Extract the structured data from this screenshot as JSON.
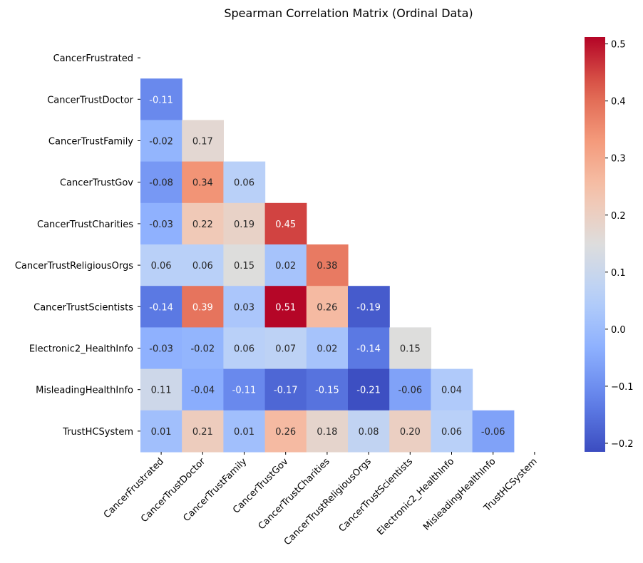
{
  "chart_data": {
    "type": "heatmap",
    "title": "Spearman Correlation Matrix (Ordinal Data)",
    "xlabel": "",
    "ylabel": "",
    "row_labels": [
      "CancerFrustrated",
      "CancerTrustDoctor",
      "CancerTrustFamily",
      "CancerTrustGov",
      "CancerTrustCharities",
      "CancerTrustReligiousOrgs",
      "CancerTrustScientists",
      "Electronic2_HealthInfo",
      "MisleadingHealthInfo",
      "TrustHCSystem"
    ],
    "col_labels": [
      "CancerFrustrated",
      "CancerTrustDoctor",
      "CancerTrustFamily",
      "CancerTrustGov",
      "CancerTrustCharities",
      "CancerTrustReligiousOrgs",
      "CancerTrustScientists",
      "Electronic2_HealthInfo",
      "MisleadingHealthInfo",
      "TrustHCSystem"
    ],
    "mask": "upper triangle including diagonal",
    "values": [
      [
        null,
        null,
        null,
        null,
        null,
        null,
        null,
        null,
        null,
        null
      ],
      [
        -0.11,
        null,
        null,
        null,
        null,
        null,
        null,
        null,
        null,
        null
      ],
      [
        -0.02,
        0.17,
        null,
        null,
        null,
        null,
        null,
        null,
        null,
        null
      ],
      [
        -0.08,
        0.34,
        0.06,
        null,
        null,
        null,
        null,
        null,
        null,
        null
      ],
      [
        -0.03,
        0.22,
        0.19,
        0.45,
        null,
        null,
        null,
        null,
        null,
        null
      ],
      [
        0.06,
        0.06,
        0.15,
        0.02,
        0.38,
        null,
        null,
        null,
        null,
        null
      ],
      [
        -0.14,
        0.39,
        0.03,
        0.51,
        0.26,
        -0.19,
        null,
        null,
        null,
        null
      ],
      [
        -0.03,
        -0.02,
        0.06,
        0.07,
        0.02,
        -0.14,
        0.15,
        null,
        null,
        null
      ],
      [
        0.11,
        -0.04,
        -0.11,
        -0.17,
        -0.15,
        -0.21,
        -0.06,
        0.04,
        null,
        null
      ],
      [
        0.01,
        0.21,
        0.01,
        0.26,
        0.18,
        0.08,
        0.2,
        0.06,
        -0.06,
        null
      ]
    ],
    "colormap": "coolwarm",
    "colorbar": {
      "vmin": -0.215,
      "vmax": 0.512,
      "ticks": [
        -0.2,
        -0.1,
        0.0,
        0.1,
        0.2,
        0.3,
        0.4,
        0.5
      ],
      "tick_labels": [
        "−0.2",
        "−0.1",
        "0.0",
        "0.1",
        "0.2",
        "0.3",
        "0.4",
        "0.5"
      ]
    },
    "annotation_format": "0.00",
    "grid": false
  }
}
